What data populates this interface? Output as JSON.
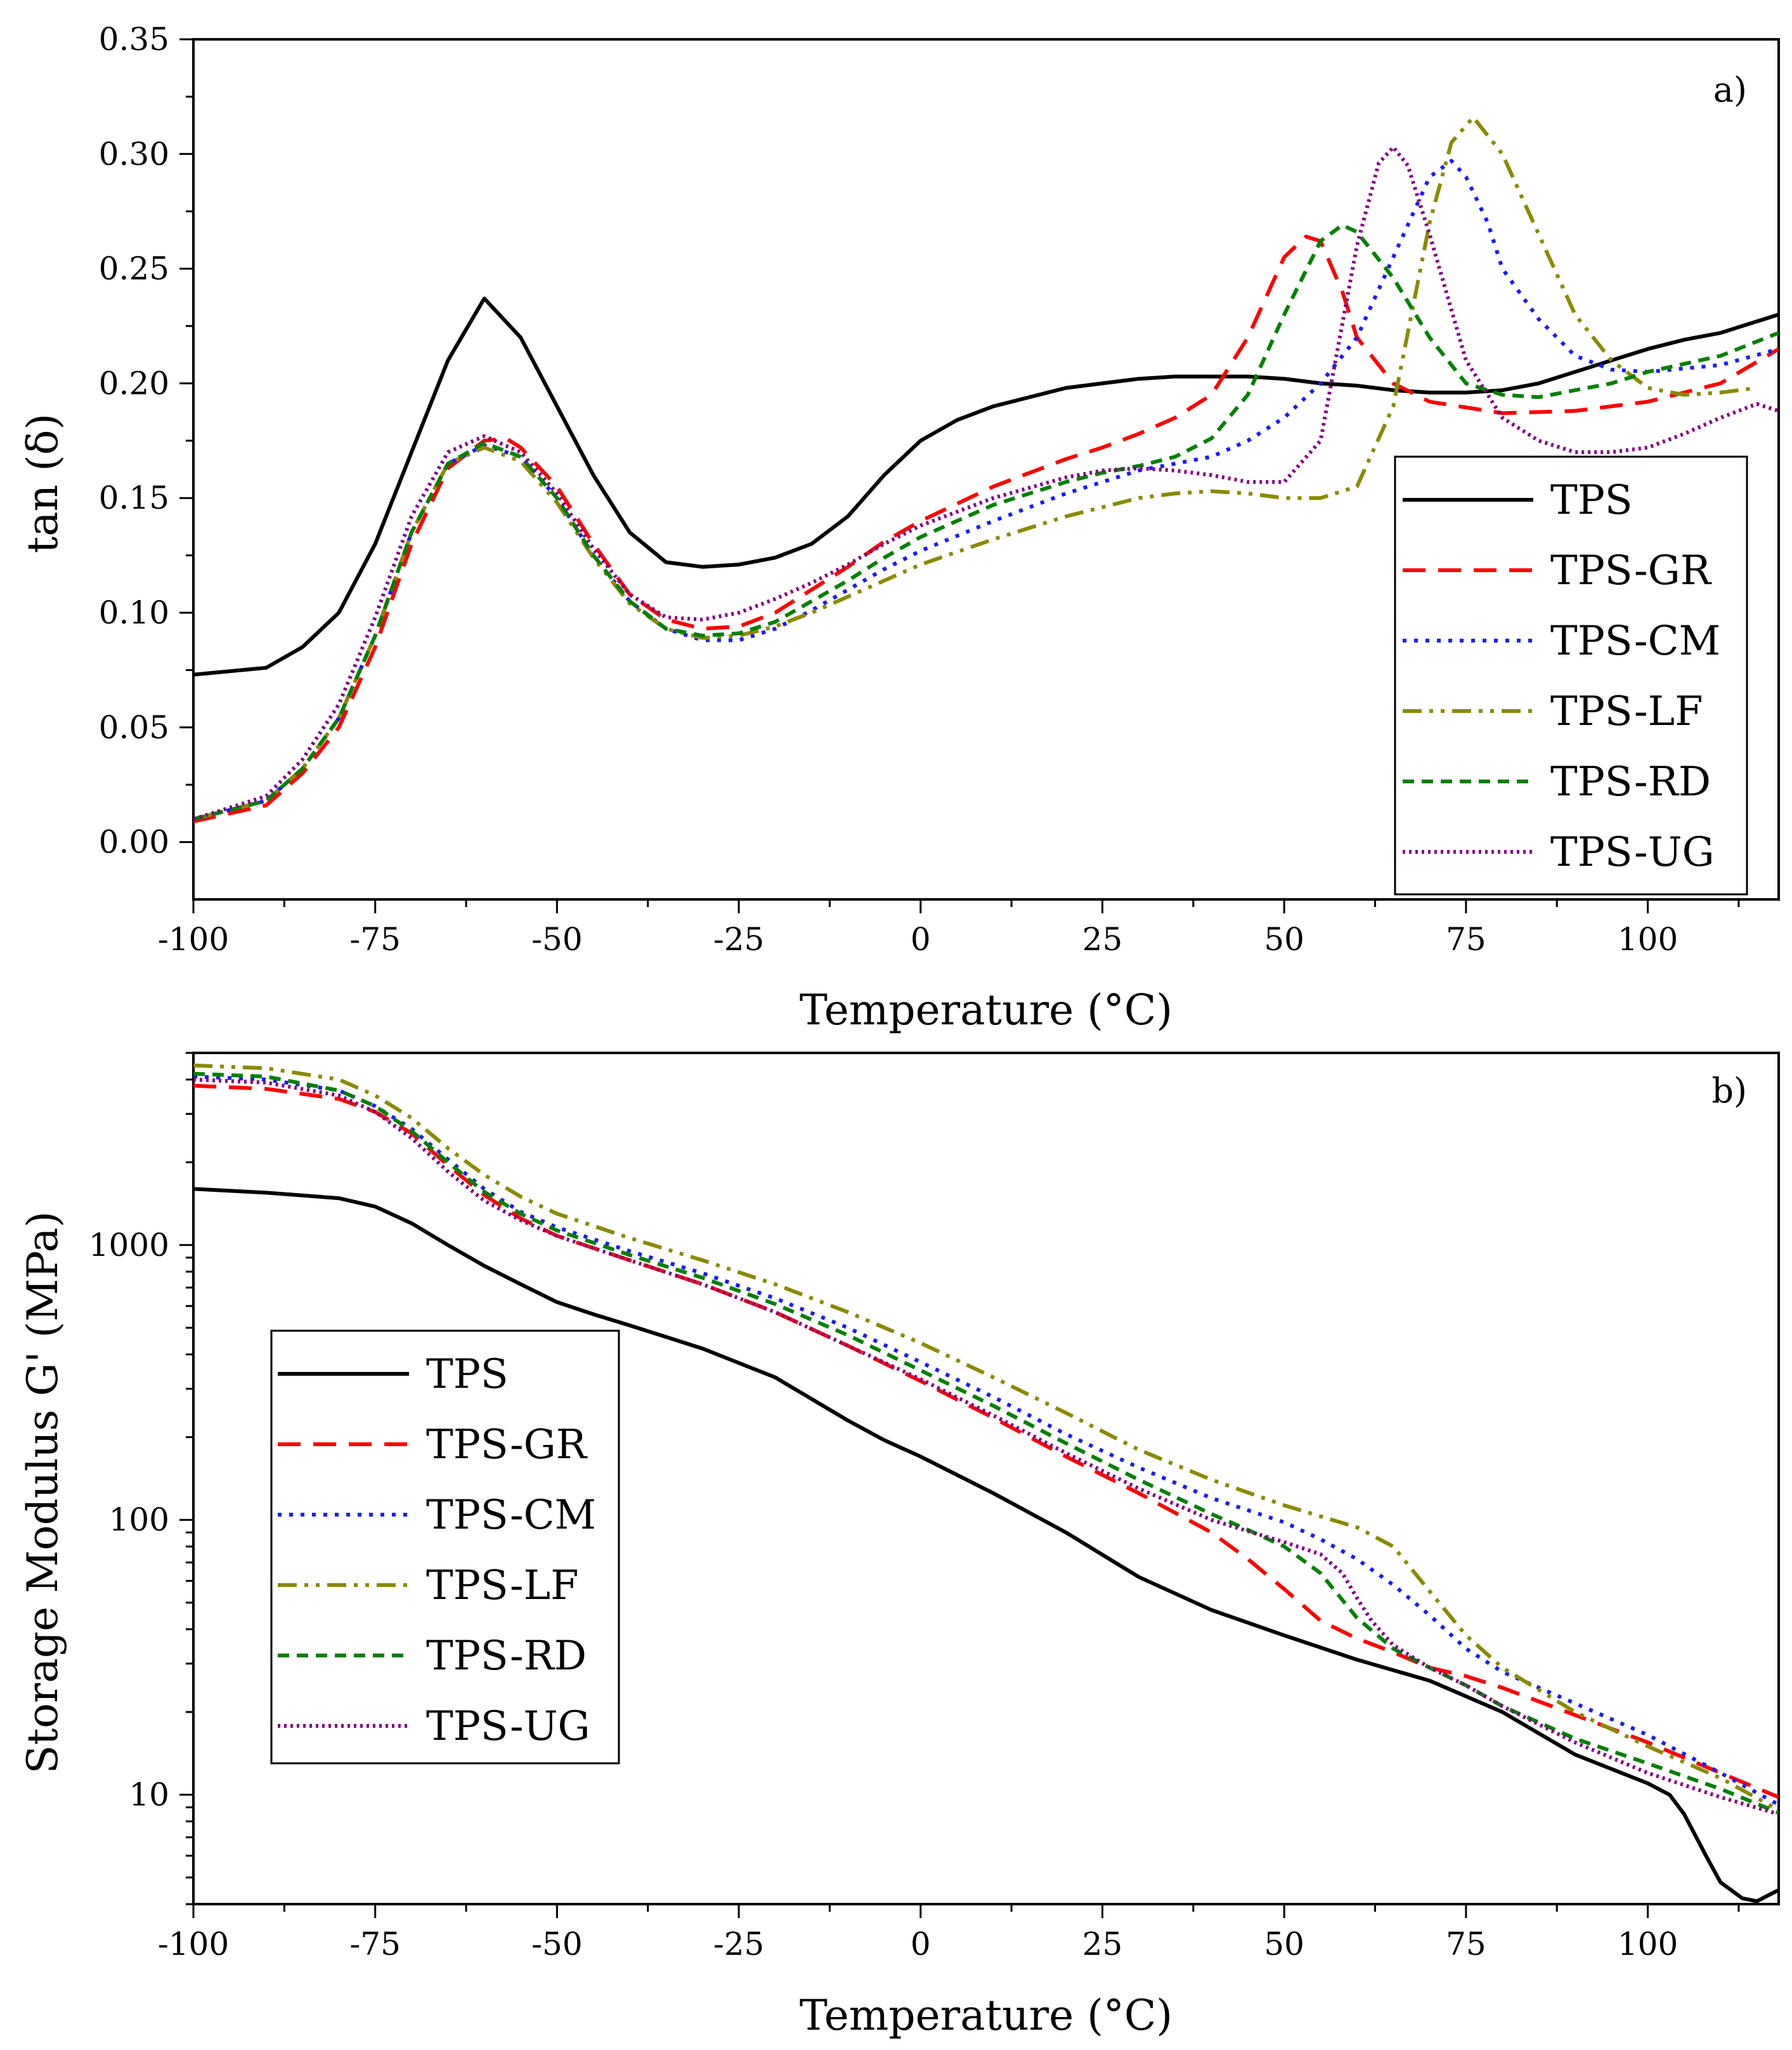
{
  "chart_data": [
    {
      "type": "line",
      "panel_label": "a)",
      "xlabel": "Temperature (°C)",
      "ylabel": "tan (δ)",
      "xlim": [
        -100,
        118
      ],
      "ylim": [
        -0.025,
        0.35
      ],
      "xticks": [
        -100,
        -75,
        -50,
        -25,
        0,
        25,
        50,
        75,
        100
      ],
      "yticks": [
        0.0,
        0.05,
        0.1,
        0.15,
        0.2,
        0.25,
        0.3,
        0.35
      ],
      "xtick_labels": [
        "-100",
        "-75",
        "-50",
        "-25",
        "0",
        "25",
        "50",
        "75",
        "100"
      ],
      "ytick_labels": [
        "0.00",
        "0.05",
        "0.10",
        "0.15",
        "0.20",
        "0.25",
        "0.30",
        "0.35"
      ],
      "grid": false,
      "legend_position": "bottom-right",
      "series": [
        {
          "name": "TPS",
          "color": "#000000",
          "dash": "solid",
          "x": [
            -100,
            -90,
            -85,
            -80,
            -75,
            -70,
            -65,
            -60,
            -55,
            -50,
            -45,
            -40,
            -35,
            -30,
            -25,
            -20,
            -15,
            -10,
            -5,
            0,
            5,
            10,
            15,
            20,
            25,
            30,
            35,
            40,
            45,
            50,
            55,
            60,
            65,
            70,
            75,
            80,
            85,
            90,
            95,
            100,
            105,
            110,
            118
          ],
          "y": [
            0.073,
            0.076,
            0.085,
            0.1,
            0.13,
            0.17,
            0.21,
            0.237,
            0.22,
            0.19,
            0.16,
            0.135,
            0.122,
            0.12,
            0.121,
            0.124,
            0.13,
            0.142,
            0.16,
            0.175,
            0.184,
            0.19,
            0.194,
            0.198,
            0.2,
            0.202,
            0.203,
            0.203,
            0.203,
            0.202,
            0.2,
            0.199,
            0.197,
            0.196,
            0.196,
            0.197,
            0.2,
            0.205,
            0.21,
            0.215,
            0.219,
            0.222,
            0.23
          ]
        },
        {
          "name": "TPS-GR",
          "color": "#ff0000",
          "dash": "dashed",
          "x": [
            -100,
            -90,
            -85,
            -80,
            -75,
            -70,
            -65,
            -60,
            -57,
            -55,
            -50,
            -45,
            -40,
            -35,
            -30,
            -25,
            -20,
            -15,
            -10,
            -5,
            0,
            10,
            20,
            25,
            30,
            35,
            40,
            45,
            50,
            53,
            55,
            58,
            60,
            65,
            70,
            80,
            90,
            100,
            110,
            118
          ],
          "y": [
            0.009,
            0.016,
            0.03,
            0.05,
            0.085,
            0.13,
            0.163,
            0.175,
            0.176,
            0.172,
            0.155,
            0.13,
            0.108,
            0.097,
            0.093,
            0.094,
            0.1,
            0.11,
            0.12,
            0.131,
            0.14,
            0.155,
            0.167,
            0.172,
            0.178,
            0.185,
            0.195,
            0.22,
            0.255,
            0.264,
            0.262,
            0.24,
            0.22,
            0.2,
            0.192,
            0.187,
            0.188,
            0.192,
            0.2,
            0.215
          ]
        },
        {
          "name": "TPS-CM",
          "color": "#1a1aff",
          "dash": "dotted",
          "x": [
            -100,
            -90,
            -85,
            -80,
            -75,
            -70,
            -65,
            -60,
            -55,
            -50,
            -45,
            -40,
            -35,
            -30,
            -25,
            -20,
            -15,
            -10,
            -5,
            0,
            10,
            20,
            25,
            30,
            35,
            40,
            45,
            50,
            55,
            60,
            65,
            70,
            73,
            75,
            78,
            80,
            85,
            90,
            95,
            100,
            110,
            118
          ],
          "y": [
            0.01,
            0.018,
            0.032,
            0.054,
            0.09,
            0.135,
            0.165,
            0.173,
            0.168,
            0.15,
            0.125,
            0.105,
            0.093,
            0.088,
            0.088,
            0.093,
            0.101,
            0.11,
            0.119,
            0.127,
            0.14,
            0.152,
            0.157,
            0.162,
            0.165,
            0.168,
            0.175,
            0.185,
            0.2,
            0.22,
            0.255,
            0.29,
            0.297,
            0.29,
            0.27,
            0.25,
            0.228,
            0.212,
            0.206,
            0.205,
            0.208,
            0.215
          ]
        },
        {
          "name": "TPS-LF",
          "color": "#8a8a00",
          "dash": "dashdotdot",
          "x": [
            -100,
            -90,
            -85,
            -80,
            -75,
            -70,
            -65,
            -60,
            -55,
            -50,
            -45,
            -40,
            -35,
            -30,
            -25,
            -20,
            -15,
            -10,
            -5,
            0,
            10,
            20,
            25,
            30,
            35,
            40,
            45,
            50,
            55,
            60,
            65,
            70,
            73,
            76,
            80,
            85,
            90,
            95,
            100,
            105,
            110,
            115
          ],
          "y": [
            0.01,
            0.018,
            0.032,
            0.054,
            0.09,
            0.135,
            0.165,
            0.172,
            0.166,
            0.148,
            0.124,
            0.104,
            0.093,
            0.089,
            0.09,
            0.094,
            0.1,
            0.107,
            0.114,
            0.121,
            0.132,
            0.142,
            0.146,
            0.15,
            0.152,
            0.153,
            0.152,
            0.15,
            0.15,
            0.155,
            0.19,
            0.27,
            0.305,
            0.316,
            0.3,
            0.265,
            0.23,
            0.21,
            0.198,
            0.195,
            0.196,
            0.198
          ]
        },
        {
          "name": "TPS-RD",
          "color": "#008000",
          "dash": "shortdash",
          "x": [
            -100,
            -90,
            -85,
            -80,
            -75,
            -70,
            -65,
            -60,
            -55,
            -50,
            -45,
            -40,
            -35,
            -30,
            -25,
            -20,
            -15,
            -10,
            -5,
            0,
            10,
            20,
            25,
            30,
            35,
            40,
            45,
            50,
            55,
            58,
            60,
            65,
            70,
            75,
            80,
            85,
            90,
            95,
            100,
            110,
            118
          ],
          "y": [
            0.01,
            0.018,
            0.032,
            0.054,
            0.09,
            0.135,
            0.165,
            0.174,
            0.168,
            0.15,
            0.125,
            0.105,
            0.093,
            0.09,
            0.091,
            0.096,
            0.105,
            0.114,
            0.124,
            0.133,
            0.147,
            0.157,
            0.161,
            0.164,
            0.168,
            0.176,
            0.195,
            0.23,
            0.262,
            0.269,
            0.266,
            0.246,
            0.22,
            0.2,
            0.195,
            0.194,
            0.197,
            0.2,
            0.205,
            0.212,
            0.222
          ]
        },
        {
          "name": "TPS-UG",
          "color": "#800080",
          "dash": "densedot",
          "x": [
            -100,
            -90,
            -85,
            -80,
            -75,
            -70,
            -65,
            -60,
            -55,
            -50,
            -45,
            -40,
            -35,
            -30,
            -25,
            -20,
            -15,
            -10,
            -5,
            0,
            10,
            20,
            25,
            30,
            35,
            40,
            45,
            50,
            55,
            60,
            63,
            65,
            67,
            70,
            75,
            80,
            85,
            90,
            95,
            100,
            105,
            110,
            115,
            118
          ],
          "y": [
            0.01,
            0.02,
            0.036,
            0.06,
            0.098,
            0.142,
            0.17,
            0.177,
            0.17,
            0.152,
            0.128,
            0.108,
            0.098,
            0.097,
            0.1,
            0.106,
            0.113,
            0.121,
            0.13,
            0.138,
            0.15,
            0.159,
            0.162,
            0.163,
            0.162,
            0.16,
            0.157,
            0.157,
            0.175,
            0.26,
            0.296,
            0.303,
            0.295,
            0.265,
            0.21,
            0.185,
            0.175,
            0.17,
            0.17,
            0.172,
            0.178,
            0.185,
            0.191,
            0.188
          ]
        }
      ],
      "legend": [
        "TPS",
        "TPS-GR",
        "TPS-CM",
        "TPS-LF",
        "TPS-RD",
        "TPS-UG"
      ]
    },
    {
      "type": "line",
      "panel_label": "b)",
      "xlabel": "Temperature (°C)",
      "ylabel": "Storage Modulus G' (MPa)",
      "yscale": "log",
      "xlim": [
        -100,
        118
      ],
      "ylim": [
        4,
        5000
      ],
      "xticks": [
        -100,
        -75,
        -50,
        -25,
        0,
        25,
        50,
        75,
        100
      ],
      "yticks": [
        10,
        100,
        1000
      ],
      "xtick_labels": [
        "-100",
        "-75",
        "-50",
        "-25",
        "0",
        "25",
        "50",
        "75",
        "100"
      ],
      "ytick_labels": [
        "10",
        "100",
        "1000"
      ],
      "grid": false,
      "legend_position": "middle-left",
      "series": [
        {
          "name": "TPS",
          "color": "#000000",
          "dash": "solid",
          "x": [
            -100,
            -90,
            -80,
            -75,
            -70,
            -65,
            -60,
            -55,
            -50,
            -45,
            -40,
            -30,
            -20,
            -10,
            -5,
            0,
            10,
            20,
            30,
            40,
            50,
            60,
            70,
            80,
            90,
            100,
            103,
            105,
            108,
            110,
            113,
            115,
            118
          ],
          "y": [
            1600,
            1550,
            1480,
            1380,
            1200,
            1000,
            840,
            720,
            620,
            560,
            510,
            420,
            330,
            230,
            195,
            170,
            125,
            90,
            62,
            47,
            38,
            31,
            26,
            20,
            14,
            11,
            10,
            8.5,
            6,
            4.8,
            4.2,
            4.1,
            4.5
          ]
        },
        {
          "name": "TPS-GR",
          "color": "#ff0000",
          "dash": "dashed",
          "x": [
            -100,
            -90,
            -80,
            -75,
            -70,
            -65,
            -60,
            -55,
            -50,
            -40,
            -30,
            -20,
            -10,
            0,
            10,
            20,
            30,
            40,
            45,
            50,
            55,
            60,
            65,
            70,
            75,
            80,
            90,
            100,
            110,
            118
          ],
          "y": [
            3800,
            3700,
            3400,
            3050,
            2550,
            1950,
            1520,
            1250,
            1080,
            880,
            720,
            570,
            430,
            320,
            235,
            170,
            125,
            90,
            72,
            56,
            43,
            37,
            33,
            29,
            27,
            24.5,
            19.5,
            15.5,
            12,
            9.8
          ]
        },
        {
          "name": "TPS-CM",
          "color": "#1a1aff",
          "dash": "dotted",
          "x": [
            -100,
            -90,
            -80,
            -75,
            -70,
            -65,
            -60,
            -55,
            -50,
            -40,
            -30,
            -20,
            -10,
            0,
            10,
            20,
            30,
            40,
            50,
            55,
            60,
            65,
            70,
            75,
            80,
            90,
            100,
            110,
            118
          ],
          "y": [
            4100,
            4000,
            3650,
            3200,
            2650,
            2050,
            1600,
            1320,
            1160,
            950,
            790,
            640,
            500,
            375,
            280,
            205,
            155,
            120,
            98,
            85,
            72,
            58,
            45,
            34,
            28,
            21.5,
            16.5,
            12,
            9.2
          ]
        },
        {
          "name": "TPS-LF",
          "color": "#8a8a00",
          "dash": "dashdotdot",
          "x": [
            -100,
            -90,
            -80,
            -75,
            -70,
            -65,
            -60,
            -55,
            -50,
            -40,
            -30,
            -20,
            -10,
            0,
            10,
            20,
            30,
            40,
            50,
            55,
            60,
            65,
            70,
            75,
            80,
            90,
            100,
            110,
            118
          ],
          "y": [
            4500,
            4400,
            4000,
            3500,
            2900,
            2250,
            1800,
            1500,
            1300,
            1060,
            880,
            720,
            570,
            440,
            330,
            245,
            180,
            140,
            113,
            103,
            94,
            80,
            55,
            38,
            29,
            20,
            15,
            11.5,
            8.8
          ]
        },
        {
          "name": "TPS-RD",
          "color": "#008000",
          "dash": "shortdash",
          "x": [
            -100,
            -90,
            -80,
            -75,
            -70,
            -65,
            -60,
            -55,
            -50,
            -40,
            -30,
            -20,
            -10,
            0,
            10,
            20,
            30,
            40,
            45,
            50,
            55,
            60,
            65,
            70,
            75,
            80,
            90,
            100,
            110,
            118
          ],
          "y": [
            4200,
            4100,
            3650,
            3200,
            2600,
            2000,
            1560,
            1300,
            1130,
            920,
            760,
            610,
            470,
            350,
            260,
            190,
            140,
            105,
            92,
            80,
            64,
            44,
            34,
            29,
            25,
            21,
            16,
            13,
            10.5,
            8.6
          ]
        },
        {
          "name": "TPS-UG",
          "color": "#800080",
          "dash": "densedot",
          "x": [
            -100,
            -90,
            -80,
            -75,
            -70,
            -65,
            -60,
            -55,
            -50,
            -40,
            -30,
            -20,
            -10,
            0,
            10,
            20,
            30,
            40,
            45,
            50,
            55,
            58,
            60,
            62,
            65,
            70,
            75,
            80,
            90,
            100,
            110,
            118
          ],
          "y": [
            4000,
            3900,
            3500,
            3050,
            2450,
            1850,
            1450,
            1230,
            1080,
            880,
            720,
            570,
            430,
            325,
            240,
            175,
            130,
            100,
            91,
            83,
            75,
            64,
            52,
            43,
            35,
            29,
            25,
            21,
            15.5,
            12,
            9.8,
            8.5
          ]
        }
      ],
      "legend": [
        "TPS",
        "TPS-GR",
        "TPS-CM",
        "TPS-LF",
        "TPS-RD",
        "TPS-UG"
      ]
    }
  ]
}
